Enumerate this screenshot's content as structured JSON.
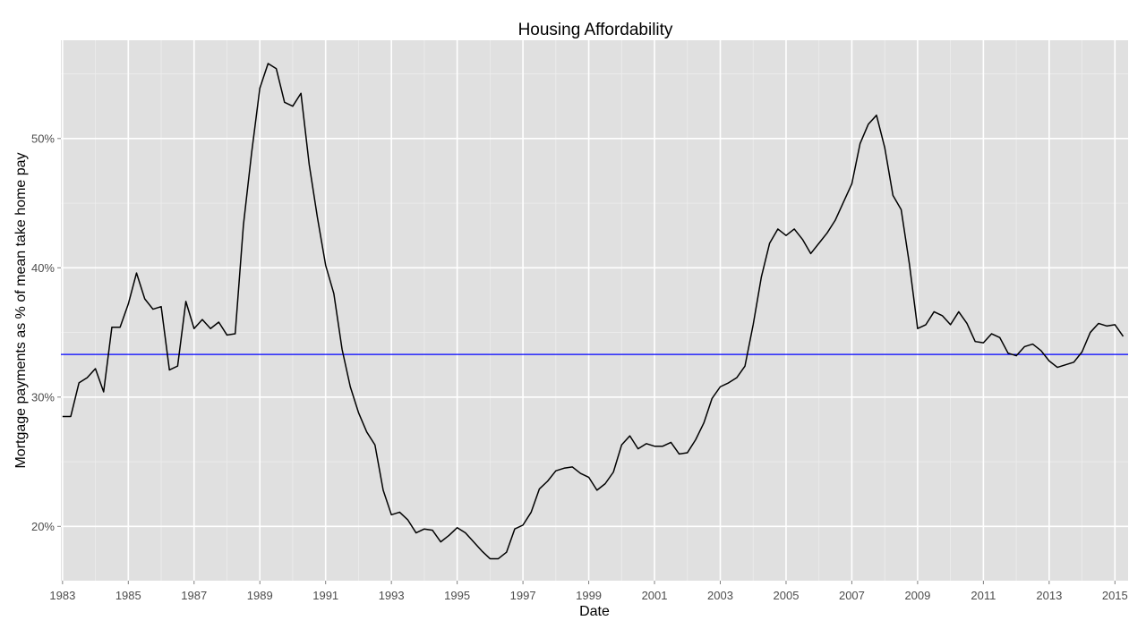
{
  "chart_data": {
    "type": "line",
    "title": "Housing Affordability",
    "xlabel": "Date",
    "ylabel": "Mortgage payments as % of mean take home pay",
    "x_ticks": [
      "1983",
      "1985",
      "1987",
      "1989",
      "1991",
      "1993",
      "1995",
      "1997",
      "1999",
      "2001",
      "2003",
      "2005",
      "2007",
      "2009",
      "2011",
      "2013",
      "2015"
    ],
    "y_ticks": [
      "20%",
      "30%",
      "40%",
      "50%"
    ],
    "xlim": [
      1982.95,
      2015.4
    ],
    "ylim": [
      15.8,
      57.6
    ],
    "grid": true,
    "reference_line": {
      "value": 33.3,
      "color": "#0000ff"
    },
    "colors": {
      "panel": "#e0e0e0",
      "grid_major": "#ffffff",
      "grid_minor": "#ededed",
      "line": "#000000"
    },
    "series": [
      {
        "x": [
          1983.0,
          1983.25,
          1983.5,
          1983.75,
          1984.0,
          1984.25,
          1984.5,
          1984.75,
          1985.0,
          1985.25,
          1985.5,
          1985.75,
          1986.0,
          1986.25,
          1986.5,
          1986.75,
          1987.0,
          1987.25,
          1987.5,
          1987.75,
          1987.8,
          1988.0,
          1988.25,
          1988.5,
          1988.75,
          1989.0,
          1989.25,
          1989.5,
          1989.75,
          1990.0,
          1990.25,
          1990.5,
          1990.75,
          1991.0,
          1991.25,
          1991.5,
          1991.75,
          1992.0,
          1992.25,
          1992.5,
          1992.75,
          1993.0,
          1993.25,
          1993.5,
          1993.75,
          1994.0,
          1994.25,
          1994.5,
          1994.75,
          1995.0,
          1995.25,
          1995.5,
          1995.75,
          1996.0,
          1996.25,
          1996.5,
          1996.75,
          1997.0,
          1997.25,
          1997.5,
          1997.75,
          1998.0,
          1998.25,
          1998.5,
          1998.75,
          1999.0,
          1999.25,
          1999.5,
          1999.75,
          2000.0,
          2000.25,
          2000.5,
          2000.75,
          2001.0,
          2001.25,
          2001.5,
          2001.75,
          2002.0,
          2002.25,
          2002.5,
          2002.75,
          2003.0,
          2003.25,
          2003.5,
          2003.75,
          2004.0,
          2004.25,
          2004.5,
          2004.75,
          2005.0,
          2005.25,
          2005.5,
          2005.75,
          2006.0,
          2006.25,
          2006.5,
          2006.75,
          2007.0,
          2007.25,
          2007.5,
          2007.75,
          2008.0,
          2008.25,
          2008.5,
          2008.75,
          2009.0,
          2009.25,
          2009.5,
          2009.75,
          2010.0,
          2010.25,
          2010.5,
          2010.75,
          2011.0,
          2011.25,
          2011.5,
          2011.75,
          2012.0,
          2012.25,
          2012.5,
          2012.75,
          2013.0,
          2013.25,
          2013.5,
          2013.75,
          2014.0,
          2014.25,
          2014.5,
          2014.75,
          2015.0,
          2015.25
        ],
        "values": [
          28.5,
          28.5,
          31.1,
          31.5,
          32.2,
          30.4,
          35.4,
          35.4,
          37.2,
          39.6,
          37.6,
          36.8,
          37.0,
          32.1,
          32.4,
          37.4,
          35.3,
          36.0,
          35.3,
          35.8,
          35.6,
          34.8,
          34.9,
          43.3,
          48.9,
          53.9,
          55.8,
          55.4,
          52.8,
          52.5,
          53.5,
          48.0,
          43.9,
          40.2,
          38.0,
          33.7,
          30.8,
          28.8,
          27.3,
          26.3,
          22.8,
          20.9,
          21.1,
          20.5,
          19.5,
          19.8,
          19.7,
          18.8,
          19.3,
          19.9,
          19.5,
          18.8,
          18.1,
          17.5,
          17.5,
          18.0,
          19.8,
          20.1,
          21.1,
          22.9,
          23.5,
          24.3,
          24.5,
          24.6,
          24.1,
          23.8,
          22.8,
          23.3,
          24.2,
          26.3,
          27.0,
          26.0,
          26.4,
          26.2,
          26.2,
          26.5,
          25.6,
          25.7,
          26.7,
          28.0,
          29.9,
          30.8,
          31.1,
          31.5,
          32.4,
          35.6,
          39.3,
          41.9,
          43.0,
          42.5,
          43.0,
          42.2,
          41.1,
          41.9,
          42.7,
          43.7,
          45.1,
          46.5,
          49.6,
          51.1,
          51.8,
          49.3,
          45.6,
          44.5,
          40.3,
          35.3,
          35.6,
          36.6,
          36.3,
          35.6,
          36.6,
          35.7,
          34.3,
          34.2,
          34.9,
          34.6,
          33.4,
          33.2,
          33.9,
          34.1,
          33.6,
          32.8,
          32.3,
          32.5,
          32.7,
          33.5,
          35.0,
          35.7,
          35.5,
          35.6,
          34.7
        ]
      }
    ]
  }
}
